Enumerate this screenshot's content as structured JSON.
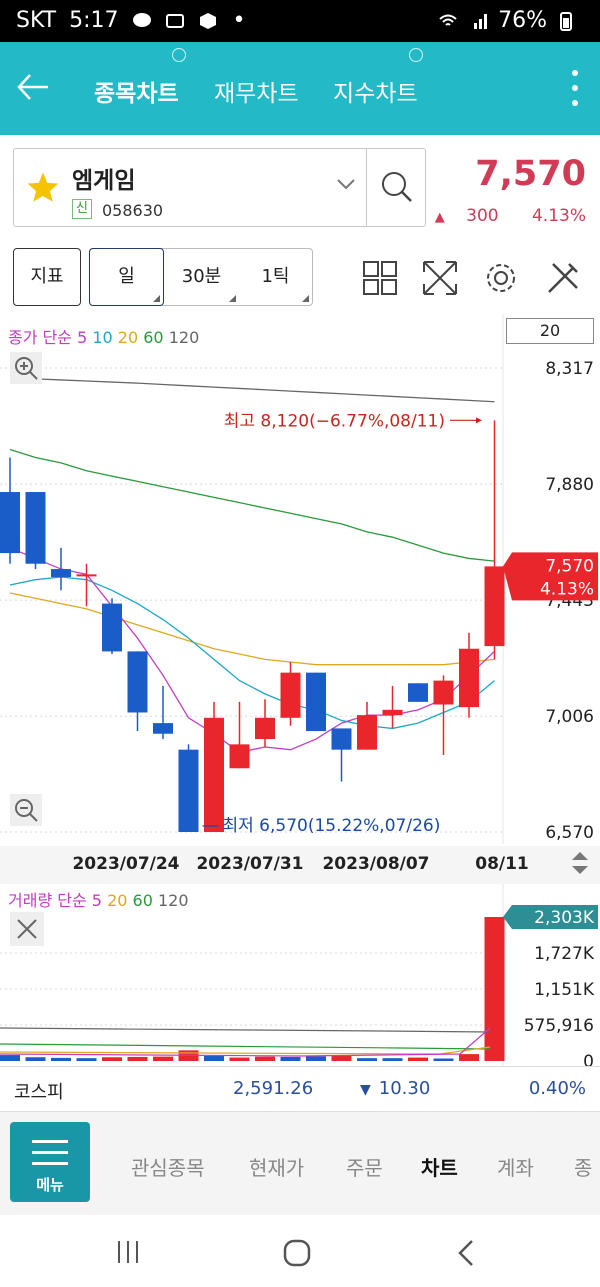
{
  "status_bar": {
    "carrier": "SKT",
    "time": "5:17",
    "battery": "76%"
  },
  "nav": {
    "tabs": [
      {
        "label": "종목차트",
        "active": true
      },
      {
        "label": "재무차트",
        "active": false
      },
      {
        "label": "지수차트",
        "active": false
      }
    ]
  },
  "stock": {
    "name": "엠게임",
    "badge": "신",
    "code": "058630",
    "price": "7,570",
    "change": "300",
    "change_pct": "4.13%"
  },
  "toolbar": {
    "indicator_label": "지표",
    "periods": [
      "일",
      "30분",
      "1틱"
    ],
    "selected_period": "일"
  },
  "colors": {
    "up": "#e8262c",
    "down": "#1a5cc8",
    "accent": "#23bac8",
    "ma5": "#c43bc4",
    "ma10": "#1aa7c8",
    "ma20": "#e0a81f",
    "ma60": "#2a9a3a",
    "ma120": "#666666"
  },
  "chart_data": [
    {
      "type": "candlestick",
      "legend": {
        "prefix": "종가 단순",
        "periods": [
          "5",
          "10",
          "20",
          "60",
          "120"
        ]
      },
      "visible_count": "20",
      "yaxis_ticks": [
        "8,317",
        "7,880",
        "7,443",
        "7,006",
        "6,570"
      ],
      "ylim": [
        6570,
        8317
      ],
      "xaxis_labels": [
        "2023/07/24",
        "2023/07/31",
        "2023/08/07",
        "08/11"
      ],
      "candles": [
        {
          "o": 7850,
          "h": 7980,
          "l": 7580,
          "c": 7620
        },
        {
          "o": 7850,
          "h": 7850,
          "l": 7560,
          "c": 7580
        },
        {
          "o": 7560,
          "h": 7640,
          "l": 7480,
          "c": 7530
        },
        {
          "o": 7540,
          "h": 7580,
          "l": 7420,
          "c": 7540
        },
        {
          "o": 7430,
          "h": 7450,
          "l": 7240,
          "c": 7250
        },
        {
          "o": 7250,
          "h": 7250,
          "l": 6950,
          "c": 7020
        },
        {
          "o": 6980,
          "h": 7120,
          "l": 6920,
          "c": 6940
        },
        {
          "o": 6880,
          "h": 6900,
          "l": 6570,
          "c": 6570
        },
        {
          "o": 6570,
          "h": 7060,
          "l": 6570,
          "c": 7000
        },
        {
          "o": 6810,
          "h": 7060,
          "l": 6810,
          "c": 6900
        },
        {
          "o": 6920,
          "h": 7070,
          "l": 6890,
          "c": 7000
        },
        {
          "o": 7000,
          "h": 7210,
          "l": 6970,
          "c": 7170
        },
        {
          "o": 7170,
          "h": 7170,
          "l": 6950,
          "c": 6950
        },
        {
          "o": 6960,
          "h": 6960,
          "l": 6760,
          "c": 6880
        },
        {
          "o": 6880,
          "h": 7060,
          "l": 6880,
          "c": 7010
        },
        {
          "o": 7010,
          "h": 7120,
          "l": 6960,
          "c": 7030
        },
        {
          "o": 7130,
          "h": 7130,
          "l": 7060,
          "c": 7060
        },
        {
          "o": 7050,
          "h": 7160,
          "l": 6860,
          "c": 7140
        },
        {
          "o": 7040,
          "h": 7320,
          "l": 7000,
          "c": 7260
        },
        {
          "o": 7270,
          "h": 8120,
          "l": 7220,
          "c": 7570
        }
      ],
      "ma": {
        "ma5": [
          7640,
          7600,
          7560,
          7540,
          7420,
          7300,
          7160,
          7000,
          6940,
          6870,
          6890,
          6880,
          6920,
          6980,
          7010,
          7010,
          7030,
          7070,
          7160,
          7250
        ],
        "ma10": [
          7500,
          7520,
          7530,
          7520,
          7480,
          7430,
          7370,
          7300,
          7220,
          7140,
          7090,
          7050,
          7030,
          6990,
          6970,
          6960,
          6980,
          7020,
          7060,
          7140
        ],
        "ma20": [
          7470,
          7450,
          7430,
          7410,
          7380,
          7350,
          7320,
          7290,
          7260,
          7240,
          7220,
          7210,
          7200,
          7200,
          7200,
          7200,
          7200,
          7200,
          7210,
          7220
        ],
        "ma60": [
          8010,
          7980,
          7960,
          7930,
          7910,
          7890,
          7870,
          7850,
          7830,
          7810,
          7790,
          7770,
          7750,
          7730,
          7700,
          7680,
          7650,
          7620,
          7600,
          7590
        ],
        "ma120": [
          8280,
          8276,
          8272,
          8268,
          8264,
          8260,
          8255,
          8250,
          8245,
          8240,
          8235,
          8230,
          8225,
          8220,
          8215,
          8210,
          8205,
          8200,
          8195,
          8190
        ]
      },
      "annotations": {
        "high": "최고 8,120(−6.77%,08/11)",
        "low": "최저 6,570(15.22%,07/26)",
        "last_price": "7,570",
        "last_pct": "4.13%"
      }
    },
    {
      "type": "bar",
      "title": "",
      "legend": {
        "prefix": "거래량 단순",
        "periods": [
          "5",
          "20",
          "60",
          "120"
        ]
      },
      "yaxis_ticks": [
        "1,727K",
        "1,151K",
        "575,916",
        "0"
      ],
      "last_value_label": "2,303K",
      "ylim": [
        0,
        2303000
      ],
      "values": [
        95000,
        60000,
        50000,
        45000,
        60000,
        65000,
        70000,
        170000,
        80000,
        55000,
        70000,
        65000,
        75000,
        90000,
        45000,
        45000,
        55000,
        40000,
        110000,
        2303000
      ],
      "up": [
        false,
        false,
        false,
        false,
        true,
        true,
        true,
        true,
        false,
        true,
        true,
        false,
        false,
        true,
        false,
        false,
        true,
        false,
        true,
        true
      ]
    }
  ],
  "index_bar": {
    "name": "코스피",
    "value": "2,591.26",
    "change": "10.30",
    "change_pct": "0.40%"
  },
  "bottom_menu": {
    "menu_label": "메뉴",
    "items": [
      {
        "label": "관심종목",
        "active": false
      },
      {
        "label": "현재가",
        "active": false
      },
      {
        "label": "주문",
        "active": false
      },
      {
        "label": "차트",
        "active": true
      },
      {
        "label": "계좌",
        "active": false
      },
      {
        "label": "종",
        "active": false
      }
    ]
  }
}
